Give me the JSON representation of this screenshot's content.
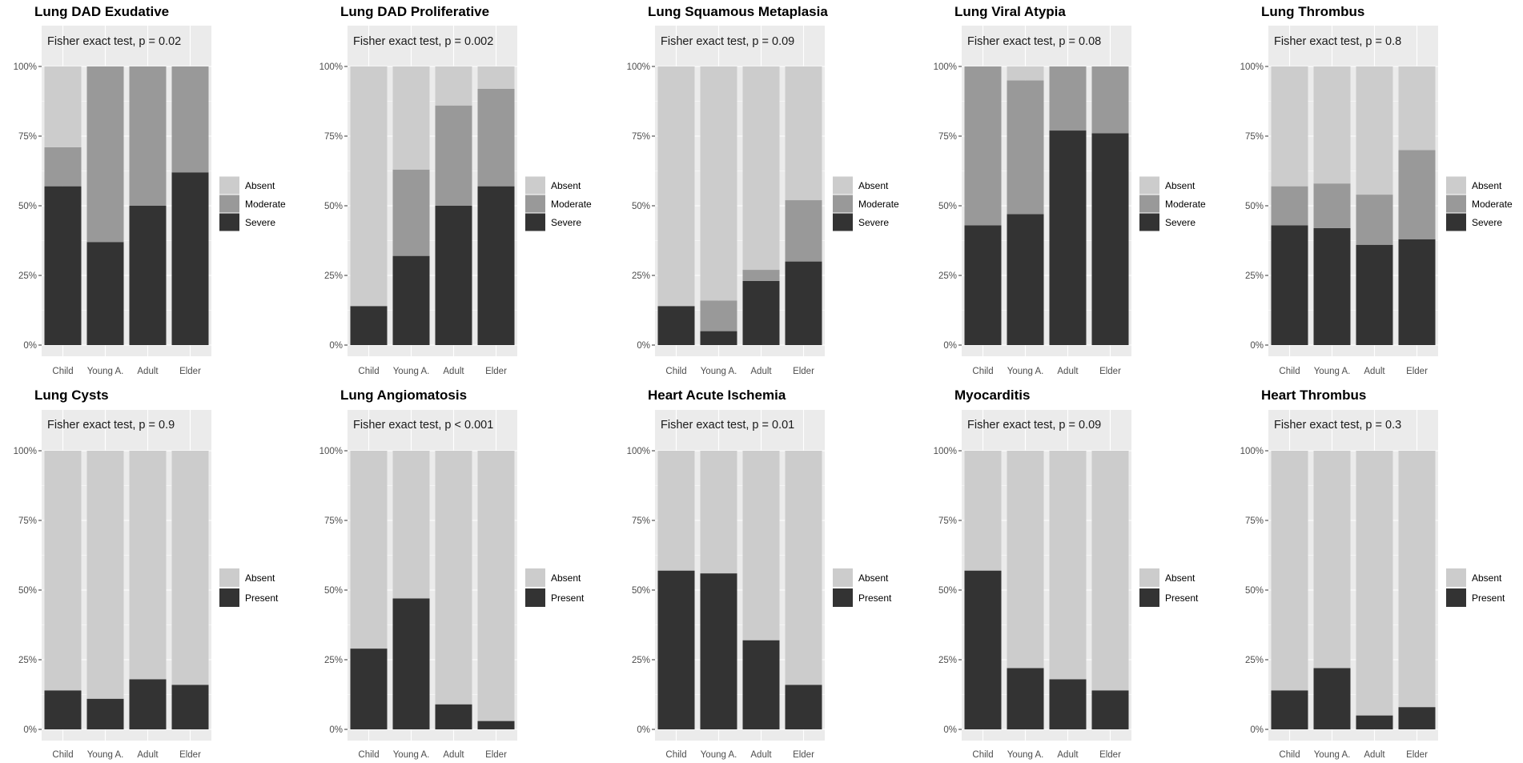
{
  "colors": {
    "Absent": "#cccccc",
    "Moderate": "#999999",
    "Severe": "#333333",
    "Present": "#333333",
    "panel": "#ebebeb",
    "grid": "#ffffff"
  },
  "chart_data": [
    {
      "type": "bar",
      "stacked": true,
      "title": "Lung DAD Exudative",
      "annotation": "Fisher exact test, p = 0.02",
      "categories": [
        "Child",
        "Young A.",
        "Adult",
        "Elder"
      ],
      "yticks": [
        "0%",
        "25%",
        "50%",
        "75%",
        "100%"
      ],
      "ylim": [
        0,
        100
      ],
      "legend": [
        "Absent",
        "Moderate",
        "Severe"
      ],
      "series": [
        {
          "name": "Severe",
          "values": [
            57,
            37,
            50,
            62
          ]
        },
        {
          "name": "Moderate",
          "values": [
            14,
            63,
            50,
            38
          ]
        },
        {
          "name": "Absent",
          "values": [
            29,
            0,
            0,
            0
          ]
        }
      ]
    },
    {
      "type": "bar",
      "stacked": true,
      "title": "Lung DAD Proliferative",
      "annotation": "Fisher exact test, p = 0.002",
      "categories": [
        "Child",
        "Young A.",
        "Adult",
        "Elder"
      ],
      "yticks": [
        "0%",
        "25%",
        "50%",
        "75%",
        "100%"
      ],
      "ylim": [
        0,
        100
      ],
      "legend": [
        "Absent",
        "Moderate",
        "Severe"
      ],
      "series": [
        {
          "name": "Severe",
          "values": [
            14,
            32,
            50,
            57
          ]
        },
        {
          "name": "Moderate",
          "values": [
            0,
            31,
            36,
            35
          ]
        },
        {
          "name": "Absent",
          "values": [
            86,
            37,
            14,
            8
          ]
        }
      ]
    },
    {
      "type": "bar",
      "stacked": true,
      "title": "Lung Squamous Metaplasia",
      "annotation": "Fisher exact test, p = 0.09",
      "categories": [
        "Child",
        "Young A.",
        "Adult",
        "Elder"
      ],
      "yticks": [
        "0%",
        "25%",
        "50%",
        "75%",
        "100%"
      ],
      "ylim": [
        0,
        100
      ],
      "legend": [
        "Absent",
        "Moderate",
        "Severe"
      ],
      "series": [
        {
          "name": "Severe",
          "values": [
            14,
            5,
            23,
            30
          ]
        },
        {
          "name": "Moderate",
          "values": [
            0,
            11,
            4,
            22
          ]
        },
        {
          "name": "Absent",
          "values": [
            86,
            84,
            73,
            48
          ]
        }
      ]
    },
    {
      "type": "bar",
      "stacked": true,
      "title": "Lung Viral Atypia",
      "annotation": "Fisher exact test, p = 0.08",
      "categories": [
        "Child",
        "Young A.",
        "Adult",
        "Elder"
      ],
      "yticks": [
        "0%",
        "25%",
        "50%",
        "75%",
        "100%"
      ],
      "ylim": [
        0,
        100
      ],
      "legend": [
        "Absent",
        "Moderate",
        "Severe"
      ],
      "series": [
        {
          "name": "Severe",
          "values": [
            43,
            47,
            77,
            76
          ]
        },
        {
          "name": "Moderate",
          "values": [
            57,
            48,
            23,
            24
          ]
        },
        {
          "name": "Absent",
          "values": [
            0,
            5,
            0,
            0
          ]
        }
      ]
    },
    {
      "type": "bar",
      "stacked": true,
      "title": "Lung Thrombus",
      "annotation": "Fisher exact test, p = 0.8",
      "categories": [
        "Child",
        "Young A.",
        "Adult",
        "Elder"
      ],
      "yticks": [
        "0%",
        "25%",
        "50%",
        "75%",
        "100%"
      ],
      "ylim": [
        0,
        100
      ],
      "legend": [
        "Absent",
        "Moderate",
        "Severe"
      ],
      "series": [
        {
          "name": "Severe",
          "values": [
            43,
            42,
            36,
            38
          ]
        },
        {
          "name": "Moderate",
          "values": [
            14,
            16,
            18,
            32
          ]
        },
        {
          "name": "Absent",
          "values": [
            43,
            42,
            46,
            30
          ]
        }
      ]
    },
    {
      "type": "bar",
      "stacked": true,
      "title": "Lung Cysts",
      "annotation": "Fisher exact test, p = 0.9",
      "categories": [
        "Child",
        "Young A.",
        "Adult",
        "Elder"
      ],
      "yticks": [
        "0%",
        "25%",
        "50%",
        "75%",
        "100%"
      ],
      "ylim": [
        0,
        100
      ],
      "legend": [
        "Absent",
        "Present"
      ],
      "series": [
        {
          "name": "Present",
          "values": [
            14,
            11,
            18,
            16
          ]
        },
        {
          "name": "Absent",
          "values": [
            86,
            89,
            82,
            84
          ]
        }
      ]
    },
    {
      "type": "bar",
      "stacked": true,
      "title": "Lung Angiomatosis",
      "annotation": "Fisher exact test, p < 0.001",
      "categories": [
        "Child",
        "Young A.",
        "Adult",
        "Elder"
      ],
      "yticks": [
        "0%",
        "25%",
        "50%",
        "75%",
        "100%"
      ],
      "ylim": [
        0,
        100
      ],
      "legend": [
        "Absent",
        "Present"
      ],
      "series": [
        {
          "name": "Present",
          "values": [
            29,
            47,
            9,
            3
          ]
        },
        {
          "name": "Absent",
          "values": [
            71,
            53,
            91,
            97
          ]
        }
      ]
    },
    {
      "type": "bar",
      "stacked": true,
      "title": "Heart Acute Ischemia",
      "annotation": "Fisher exact test, p = 0.01",
      "categories": [
        "Child",
        "Young A.",
        "Adult",
        "Elder"
      ],
      "yticks": [
        "0%",
        "25%",
        "50%",
        "75%",
        "100%"
      ],
      "ylim": [
        0,
        100
      ],
      "legend": [
        "Absent",
        "Present"
      ],
      "series": [
        {
          "name": "Present",
          "values": [
            57,
            56,
            32,
            16
          ]
        },
        {
          "name": "Absent",
          "values": [
            43,
            44,
            68,
            84
          ]
        }
      ]
    },
    {
      "type": "bar",
      "stacked": true,
      "title": "Myocarditis",
      "annotation": "Fisher exact test, p = 0.09",
      "categories": [
        "Child",
        "Young A.",
        "Adult",
        "Elder"
      ],
      "yticks": [
        "0%",
        "25%",
        "50%",
        "75%",
        "100%"
      ],
      "ylim": [
        0,
        100
      ],
      "legend": [
        "Absent",
        "Present"
      ],
      "series": [
        {
          "name": "Present",
          "values": [
            57,
            22,
            18,
            14
          ]
        },
        {
          "name": "Absent",
          "values": [
            43,
            78,
            82,
            86
          ]
        }
      ]
    },
    {
      "type": "bar",
      "stacked": true,
      "title": "Heart Thrombus",
      "annotation": "Fisher exact test, p = 0.3",
      "categories": [
        "Child",
        "Young A.",
        "Adult",
        "Elder"
      ],
      "yticks": [
        "0%",
        "25%",
        "50%",
        "75%",
        "100%"
      ],
      "ylim": [
        0,
        100
      ],
      "legend": [
        "Absent",
        "Present"
      ],
      "series": [
        {
          "name": "Present",
          "values": [
            14,
            22,
            5,
            8
          ]
        },
        {
          "name": "Absent",
          "values": [
            86,
            78,
            95,
            92
          ]
        }
      ]
    }
  ]
}
